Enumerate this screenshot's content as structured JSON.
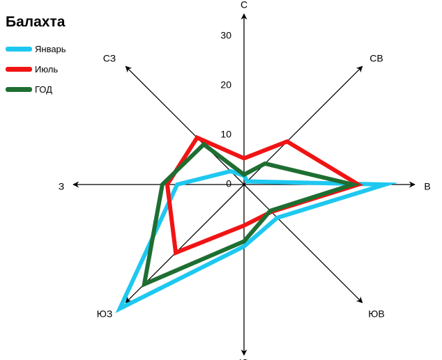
{
  "chart_data": {
    "type": "radar",
    "title": "Балахта",
    "directions": [
      "С",
      "СВ",
      "В",
      "ЮВ",
      "Ю",
      "ЮЗ",
      "З",
      "СЗ"
    ],
    "radial_ticks": [
      0,
      10,
      20,
      30
    ],
    "rmax": 33,
    "series": [
      {
        "name": "Январь",
        "color": "#1ec8f0",
        "values": [
          1.8,
          0.9,
          28.5,
          9.5,
          12.5,
          35.5,
          13.5,
          3.8
        ]
      },
      {
        "name": "Июль",
        "color": "#f01414",
        "values": [
          5.3,
          12.3,
          23.1,
          7.8,
          8.3,
          19.5,
          15.5,
          13.4
        ]
      },
      {
        "name": "ГОД",
        "color": "#1e6e32",
        "values": [
          2.0,
          6.0,
          22.0,
          7.5,
          11.5,
          28.5,
          16.5,
          11.5
        ]
      }
    ]
  }
}
